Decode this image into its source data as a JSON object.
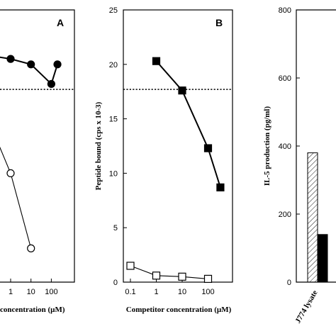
{
  "chart_data": [
    {
      "panel": "A",
      "type": "line",
      "xlabel": "concentration (µM)",
      "ylabel": "",
      "x_ticks": [
        "1",
        "10",
        "100"
      ],
      "x_tick_values": [
        1,
        10,
        100
      ],
      "x_scale": "log",
      "xlim": [
        0.05,
        400
      ],
      "ylim": [
        0,
        25
      ],
      "reference_line": 17.7,
      "series": [
        {
          "marker": "filled-circle",
          "x": [
            0.1,
            1,
            10,
            100,
            200
          ],
          "y": [
            20.8,
            20.5,
            20.0,
            18.2,
            20.0
          ]
        },
        {
          "marker": "open-circle",
          "x": [
            0.1,
            1,
            10
          ],
          "y": [
            14.5,
            10.0,
            3.1
          ]
        }
      ]
    },
    {
      "panel": "B",
      "type": "line",
      "xlabel": "Competitor concentration (µM)",
      "ylabel": "Peptide bound (cps x 10-3)",
      "y_ticks": [
        "0",
        "5",
        "10",
        "15",
        "20",
        "25"
      ],
      "y_tick_values": [
        0,
        5,
        10,
        15,
        20,
        25
      ],
      "ylim": [
        0,
        25
      ],
      "x_ticks": [
        "0.1",
        "1",
        "10",
        "100"
      ],
      "x_tick_values": [
        0.1,
        1,
        10,
        100
      ],
      "x_scale": "log",
      "xlim": [
        0.05,
        400
      ],
      "reference_line": 17.7,
      "series": [
        {
          "marker": "filled-square",
          "x": [
            1,
            10,
            100,
            300
          ],
          "y": [
            20.3,
            17.6,
            12.3,
            8.7
          ]
        },
        {
          "marker": "open-square",
          "x": [
            0.1,
            1,
            10,
            100
          ],
          "y": [
            1.5,
            0.6,
            0.5,
            0.3
          ]
        }
      ]
    },
    {
      "panel": "C",
      "type": "bar",
      "ylabel": "IL-5 production (pg/ml)",
      "y_ticks": [
        "0",
        "200",
        "400",
        "600",
        "800"
      ],
      "y_tick_values": [
        0,
        200,
        400,
        600,
        800
      ],
      "ylim": [
        0,
        800
      ],
      "categories": [
        "J774 lysate"
      ],
      "series": [
        {
          "pattern": "hatched",
          "values": [
            380
          ]
        },
        {
          "pattern": "solid-black",
          "values": [
            140
          ]
        }
      ]
    }
  ]
}
